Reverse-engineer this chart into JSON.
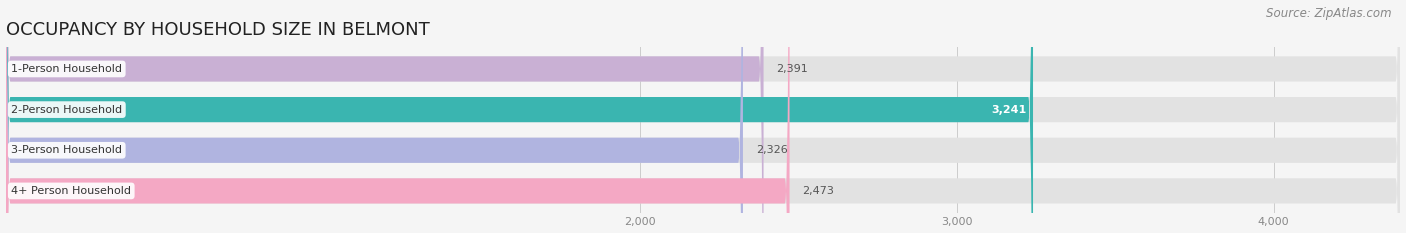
{
  "title": "OCCUPANCY BY HOUSEHOLD SIZE IN BELMONT",
  "source": "Source: ZipAtlas.com",
  "categories": [
    "1-Person Household",
    "2-Person Household",
    "3-Person Household",
    "4+ Person Household"
  ],
  "values": [
    2391,
    3241,
    2326,
    2473
  ],
  "bar_colors": [
    "#c9b0d4",
    "#3ab5b0",
    "#b0b4e0",
    "#f4a8c4"
  ],
  "bar_bg_color": "#e8e8e8",
  "value_labels": [
    "2,391",
    "3,241",
    "2,326",
    "2,473"
  ],
  "xlim": [
    0,
    4400
  ],
  "xticks": [
    2000,
    3000,
    4000
  ],
  "xtick_labels": [
    "2,000",
    "3,000",
    "4,000"
  ],
  "bar_height": 0.62,
  "fig_bg_color": "#f5f5f5",
  "title_fontsize": 13,
  "source_fontsize": 8.5,
  "label_fontsize": 8,
  "value_fontsize": 8,
  "bar_rounding": 15,
  "bar_gap": 0.38
}
